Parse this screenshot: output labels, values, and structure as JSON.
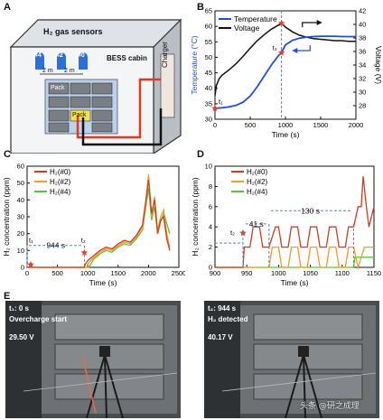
{
  "panels": {
    "A": {
      "label": "A",
      "title_sensors": "H₂ gas sensors",
      "sensor_ids": [
        "#4",
        "#2",
        "#0"
      ],
      "spacing": [
        "2 m",
        "2 m"
      ],
      "cabin": "BESS cabin",
      "charger": "Charger",
      "pack": "Pack",
      "highlight_pack": "Pack"
    },
    "B": {
      "label": "B"
    },
    "C": {
      "label": "C"
    },
    "D": {
      "label": "D"
    },
    "E": {
      "label": "E"
    }
  },
  "photos": [
    {
      "time": "t₁: 0 s",
      "event": "Overcharge start",
      "voltage": "29.50 V"
    },
    {
      "time": "t₂: 944 s",
      "event": "H₂ detected",
      "voltage": "40.17 V"
    }
  ],
  "watermark": "头条 @研之成理",
  "colors": {
    "temperature": "#1f4fe0",
    "voltage": "#111111",
    "h2_0": "#d63a1f",
    "h2_2": "#f29a2a",
    "h2_4": "#56c93a",
    "marker": "#e83b2a",
    "dashed": "#4a86c8"
  },
  "chart_data": [
    {
      "id": "B",
      "type": "line",
      "xlabel": "Time  (s)",
      "ylabel_left": "Temperature (°C)",
      "ylabel_right": "Voltage (V)",
      "xlim": [
        0,
        2000
      ],
      "ylim_left": [
        30,
        65
      ],
      "ylim_right": [
        26,
        42
      ],
      "xticks": [
        0,
        500,
        1000,
        1500,
        2000
      ],
      "yticks_left": [
        30,
        35,
        40,
        45,
        50,
        55,
        60,
        65
      ],
      "yticks_right": [
        28,
        30,
        32,
        34,
        36,
        38,
        40,
        42
      ],
      "annotations": [
        "t₁",
        "t₂"
      ],
      "series": [
        {
          "name": "Temperature",
          "axis": "left",
          "x": [
            0,
            100,
            200,
            300,
            400,
            500,
            600,
            700,
            800,
            900,
            944,
            1000,
            1100,
            1200,
            1300,
            1400,
            1500,
            1600,
            1700,
            1800,
            1900,
            2000
          ],
          "y": [
            33.5,
            33.7,
            34.0,
            34.5,
            35.5,
            37.5,
            40.5,
            44.0,
            47.5,
            50.5,
            51.5,
            54.0,
            55.5,
            56.2,
            56.5,
            56.7,
            56.8,
            56.8,
            56.8,
            56.7,
            56.7,
            56.7
          ]
        },
        {
          "name": "Voltage",
          "axis": "right",
          "x": [
            0,
            20,
            60,
            100,
            200,
            300,
            400,
            500,
            600,
            700,
            800,
            900,
            944,
            1000,
            1100,
            1200,
            1300,
            1400,
            1500,
            1600,
            1700,
            1800,
            1900,
            2000
          ],
          "y": [
            29.5,
            31.0,
            32.0,
            32.5,
            33.3,
            34.2,
            35.3,
            36.5,
            37.6,
            38.5,
            39.3,
            39.9,
            40.17,
            39.6,
            38.9,
            38.4,
            38.1,
            37.9,
            37.8,
            37.7,
            37.6,
            37.6,
            37.5,
            37.5
          ]
        }
      ]
    },
    {
      "id": "C",
      "type": "line",
      "xlabel": "Time  (s)",
      "ylabel": "H₂ concentration (ppm)",
      "xlim": [
        0,
        2500
      ],
      "ylim": [
        0,
        60
      ],
      "xticks": [
        0,
        500,
        1000,
        1500,
        2000,
        2500
      ],
      "yticks": [
        0,
        10,
        20,
        30,
        40,
        50,
        60
      ],
      "annotations": [
        "t₁",
        "t₂",
        "944 s"
      ],
      "series": [
        {
          "name": "H₂(#0)",
          "x": [
            0,
            940,
            960,
            1000,
            1100,
            1200,
            1300,
            1400,
            1500,
            1600,
            1700,
            1800,
            1900,
            1950,
            2000,
            2050,
            2100,
            2150,
            2200,
            2250,
            2300,
            2350
          ],
          "y": [
            0,
            0,
            2,
            4,
            7,
            10,
            12,
            11,
            14,
            16,
            15,
            19,
            25,
            38,
            52,
            32,
            40,
            20,
            28,
            30,
            17,
            10
          ]
        },
        {
          "name": "H₂(#2)",
          "x": [
            0,
            980,
            1000,
            1100,
            1200,
            1300,
            1400,
            1500,
            1600,
            1700,
            1800,
            1900,
            1950,
            2000,
            2050,
            2100,
            2150,
            2200,
            2250,
            2300,
            2350
          ],
          "y": [
            0,
            0,
            2,
            6,
            9,
            11,
            10,
            13,
            15,
            14,
            18,
            24,
            36,
            55,
            30,
            42,
            22,
            30,
            34,
            20,
            12
          ]
        },
        {
          "name": "H₂(#4)",
          "x": [
            0,
            1020,
            1050,
            1100,
            1200,
            1300,
            1400,
            1500,
            1600,
            1700,
            1800,
            1900,
            1950,
            2000,
            2050,
            2100,
            2150,
            2200,
            2250,
            2300,
            2350
          ],
          "y": [
            0,
            0,
            2,
            5,
            8,
            10,
            9,
            12,
            14,
            13,
            17,
            22,
            34,
            47,
            28,
            36,
            20,
            27,
            32,
            26,
            20
          ]
        }
      ]
    },
    {
      "id": "D",
      "type": "line",
      "xlabel": "Time  (s)",
      "ylabel": "H₂ concentration (ppm)",
      "xlim": [
        900,
        1150
      ],
      "ylim": [
        0,
        10
      ],
      "xticks": [
        900,
        950,
        1000,
        1050,
        1100,
        1150
      ],
      "yticks": [
        0,
        2,
        4,
        6,
        8,
        10
      ],
      "annotations": [
        "t₂",
        "41 s",
        "130 s"
      ],
      "series": [
        {
          "name": "H₂(#0)",
          "x": [
            900,
            944,
            946,
            955,
            960,
            970,
            975,
            985,
            995,
            1000,
            1005,
            1015,
            1020,
            1030,
            1035,
            1045,
            1050,
            1060,
            1065,
            1075,
            1080,
            1090,
            1095,
            1105,
            1110,
            1118,
            1125,
            1130,
            1133,
            1138,
            1142,
            1150
          ],
          "y": [
            0,
            0,
            2,
            2,
            4,
            4,
            2,
            2,
            4,
            4,
            2,
            2,
            4,
            4,
            2,
            2,
            4,
            4,
            2,
            2,
            4,
            4,
            2,
            2,
            4,
            4,
            6,
            6,
            9,
            6,
            4,
            6
          ]
        },
        {
          "name": "H₂(#2)",
          "x": [
            900,
            985,
            990,
            1000,
            1005,
            1015,
            1020,
            1030,
            1035,
            1045,
            1050,
            1060,
            1065,
            1075,
            1080,
            1090,
            1095,
            1105,
            1110,
            1118,
            1125,
            1135,
            1140,
            1150
          ],
          "y": [
            0,
            0,
            2,
            2,
            0,
            0,
            2,
            2,
            0,
            0,
            2,
            2,
            0,
            0,
            2,
            2,
            0,
            0,
            2,
            2,
            0,
            2,
            2,
            2
          ]
        },
        {
          "name": "H₂(#4)",
          "x": [
            900,
            1118,
            1120,
            1150
          ],
          "y": [
            0,
            0,
            1,
            1
          ]
        }
      ]
    }
  ]
}
